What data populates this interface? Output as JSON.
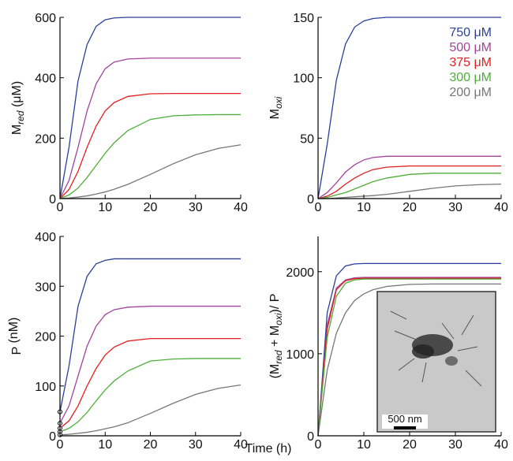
{
  "chart_data": [
    {
      "type": "line",
      "y_label": [
        "M",
        "red",
        " (μM)"
      ],
      "x": [
        0,
        2,
        4,
        6,
        8,
        10,
        12,
        15,
        20,
        25,
        30,
        35,
        40
      ],
      "xlim": [
        0,
        40
      ],
      "xticks": [
        0,
        10,
        20,
        30,
        40
      ],
      "ylim": [
        0,
        600
      ],
      "yticks": [
        0,
        200,
        400,
        600
      ],
      "series": [
        {
          "color": "#2b3f9a",
          "values": [
            0,
            170,
            390,
            510,
            570,
            592,
            598,
            600,
            600,
            600,
            600,
            600,
            600
          ]
        },
        {
          "color": "#a2449c",
          "values": [
            0,
            60,
            170,
            290,
            380,
            430,
            452,
            462,
            465,
            465,
            465,
            465,
            465
          ]
        },
        {
          "color": "#e0201f",
          "values": [
            0,
            30,
            90,
            170,
            240,
            290,
            318,
            338,
            347,
            348,
            348,
            348,
            348
          ]
        },
        {
          "color": "#4fad3a",
          "values": [
            0,
            12,
            35,
            70,
            110,
            150,
            185,
            225,
            262,
            274,
            277,
            278,
            278
          ]
        },
        {
          "color": "#777777",
          "values": [
            0,
            2,
            5,
            9,
            15,
            22,
            31,
            47,
            80,
            115,
            145,
            166,
            178
          ]
        }
      ]
    },
    {
      "type": "line",
      "y_label": [
        "M",
        "oxi",
        ""
      ],
      "legend": "upper right",
      "x": [
        0,
        2,
        4,
        6,
        8,
        10,
        12,
        15,
        20,
        25,
        30,
        35,
        40
      ],
      "xlim": [
        0,
        40
      ],
      "xticks": [
        0,
        10,
        20,
        30,
        40
      ],
      "ylim": [
        0,
        150
      ],
      "yticks": [
        0,
        50,
        100,
        150
      ],
      "series": [
        {
          "name": "750 μM",
          "color": "#2b3f9a",
          "values": [
            0,
            45,
            98,
            128,
            142,
            147,
            149,
            150,
            150,
            150,
            150,
            150,
            150
          ]
        },
        {
          "name": "500 μM",
          "color": "#a2449c",
          "values": [
            0,
            5,
            13,
            22,
            28,
            32,
            34,
            35,
            35,
            35,
            35,
            35,
            35
          ]
        },
        {
          "name": "375 μM",
          "color": "#e0201f",
          "values": [
            0,
            2,
            6,
            12,
            17,
            21,
            24,
            26,
            27,
            27,
            27,
            27,
            27
          ]
        },
        {
          "name": "300 μM",
          "color": "#4fad3a",
          "values": [
            0,
            1,
            3,
            5,
            8,
            11,
            14,
            17,
            20,
            21,
            21,
            21,
            21
          ]
        },
        {
          "name": "200 μM",
          "color": "#777777",
          "values": [
            0,
            0,
            0.5,
            1,
            1.5,
            2,
            2.5,
            3.5,
            6,
            8.5,
            10.5,
            11.5,
            12
          ]
        }
      ]
    },
    {
      "type": "line",
      "y_label": [
        "P",
        "",
        " (nM)"
      ],
      "start_markers": true,
      "x": [
        0,
        2,
        4,
        6,
        8,
        10,
        12,
        15,
        20,
        25,
        30,
        35,
        40
      ],
      "xlim": [
        0,
        40
      ],
      "xticks": [
        0,
        10,
        20,
        30,
        40
      ],
      "ylim": [
        0,
        400
      ],
      "yticks": [
        0,
        100,
        200,
        300,
        400
      ],
      "series": [
        {
          "color": "#2b3f9a",
          "values": [
            48,
            140,
            260,
            320,
            345,
            352,
            355,
            355,
            355,
            355,
            355,
            355,
            355
          ]
        },
        {
          "color": "#a2449c",
          "values": [
            25,
            60,
            120,
            180,
            220,
            243,
            253,
            258,
            260,
            260,
            260,
            260,
            260
          ]
        },
        {
          "color": "#e0201f",
          "values": [
            15,
            30,
            60,
            100,
            135,
            162,
            178,
            190,
            195,
            195,
            195,
            195,
            195
          ]
        },
        {
          "color": "#4fad3a",
          "values": [
            8,
            15,
            28,
            47,
            70,
            92,
            110,
            130,
            150,
            154,
            155,
            155,
            155
          ]
        },
        {
          "color": "#777777",
          "values": [
            2,
            3,
            5,
            7,
            10,
            14,
            18,
            26,
            45,
            65,
            83,
            95,
            102
          ]
        }
      ]
    },
    {
      "type": "line",
      "y_label": [
        "(M",
        "red",
        " + M",
        "oxi",
        ")/ P"
      ],
      "x": [
        0,
        2,
        4,
        6,
        8,
        10,
        12,
        15,
        20,
        25,
        30,
        35,
        40
      ],
      "xlim": [
        0,
        40
      ],
      "xticks": [
        0,
        10,
        20,
        30,
        40
      ],
      "ylim": [
        0,
        2430
      ],
      "yticks": [
        0,
        1000,
        2000
      ],
      "series": [
        {
          "color": "#2b3f9a",
          "values": [
            0,
            1500,
            1950,
            2070,
            2095,
            2100,
            2100,
            2100,
            2100,
            2100,
            2100,
            2100,
            2100
          ]
        },
        {
          "color": "#a2449c",
          "values": [
            0,
            1350,
            1800,
            1900,
            1925,
            1930,
            1930,
            1930,
            1930,
            1930,
            1930,
            1930,
            1930
          ]
        },
        {
          "color": "#e0201f",
          "values": [
            0,
            1300,
            1780,
            1890,
            1915,
            1920,
            1920,
            1920,
            1920,
            1920,
            1920,
            1920,
            1920
          ]
        },
        {
          "color": "#4fad3a",
          "values": [
            0,
            1200,
            1700,
            1860,
            1900,
            1910,
            1910,
            1910,
            1910,
            1910,
            1910,
            1910,
            1910
          ]
        },
        {
          "color": "#777777",
          "values": [
            0,
            800,
            1250,
            1500,
            1650,
            1730,
            1780,
            1820,
            1845,
            1850,
            1850,
            1850,
            1850
          ]
        }
      ]
    }
  ],
  "x_label": "Time (h)",
  "inset": {
    "scale_label": "500 nm"
  }
}
